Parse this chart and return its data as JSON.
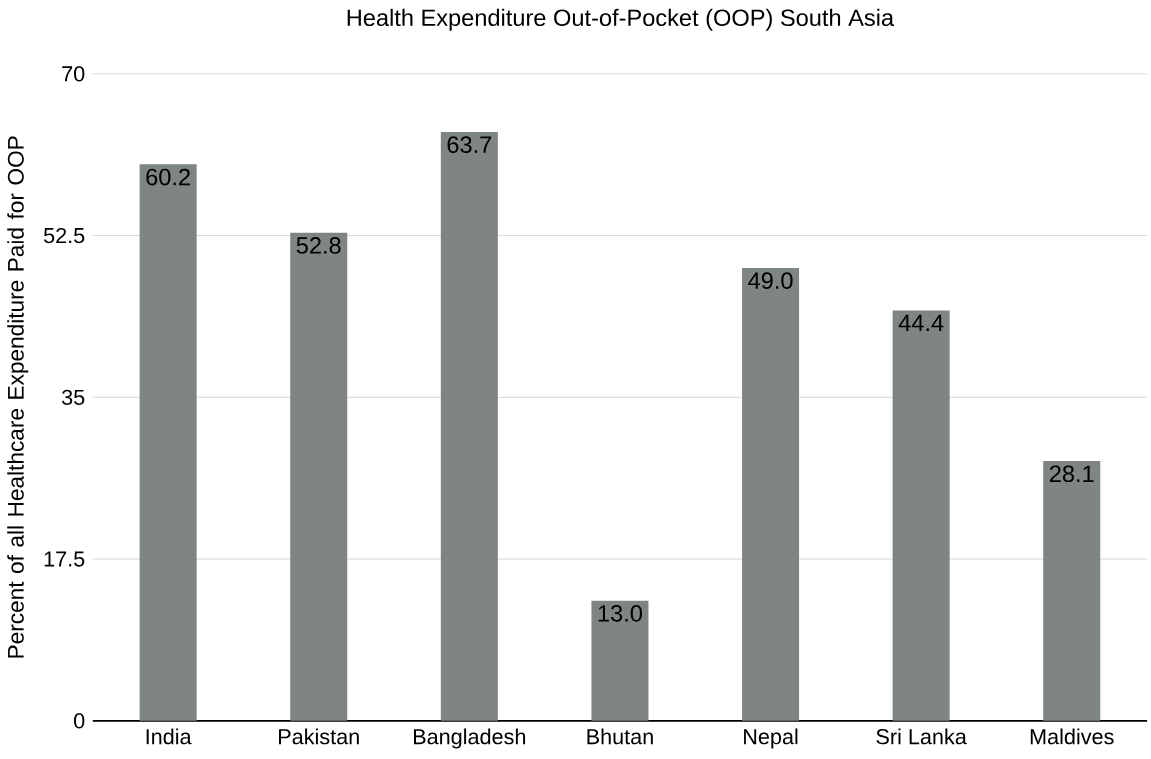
{
  "chart_data": {
    "type": "bar",
    "title": "Health Expenditure Out-of-Pocket (OOP) South Asia",
    "ylabel": "Percent of all Healthcare Expenditure Paid for OOP",
    "categories": [
      "India",
      "Pakistan",
      "Bangladesh",
      "Bhutan",
      "Nepal",
      "Sri Lanka",
      "Maldives"
    ],
    "values": [
      60.2,
      52.8,
      63.7,
      13.0,
      49.0,
      44.4,
      28.1
    ],
    "value_labels": [
      "60.2",
      "52.8",
      "63.7",
      "13.0",
      "49.0",
      "44.4",
      "28.1"
    ],
    "color": "#7f8580",
    "ylim": [
      0,
      70
    ],
    "yticks": [
      0,
      17.5,
      35,
      52.5,
      70
    ],
    "grid": "y"
  }
}
